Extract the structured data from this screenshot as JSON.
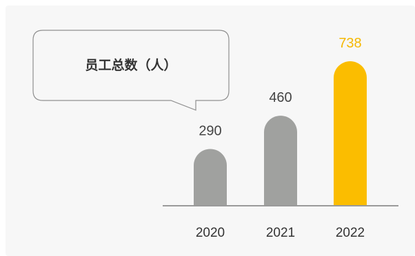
{
  "chart_data": {
    "type": "bar",
    "title": "员工总数（人）",
    "categories": [
      "2020",
      "2021",
      "2022"
    ],
    "values": [
      290,
      460,
      738
    ],
    "highlight_index": 2,
    "ylim": [
      0,
      738
    ],
    "grid": false,
    "legend": "none",
    "colors": {
      "bar": "#a0a19f",
      "highlight": "#fbbd00",
      "axis": "#9a9a9a",
      "bubble_border": "#8f8f8f",
      "bubble_fill": "#f7f7f7"
    }
  }
}
